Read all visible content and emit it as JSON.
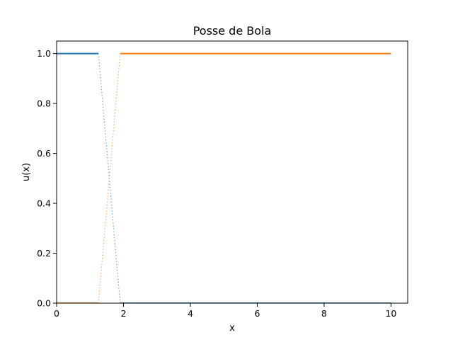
{
  "chart_data": {
    "type": "line",
    "title": "Posse de Bola",
    "xlabel": "x",
    "ylabel": "u(x)",
    "xlim": [
      0,
      10.5
    ],
    "ylim": [
      0,
      1.05
    ],
    "xticks": [
      0,
      2,
      4,
      6,
      8,
      10
    ],
    "xtick_labels": [
      "0",
      "2",
      "4",
      "6",
      "8",
      "10"
    ],
    "yticks": [
      0.0,
      0.2,
      0.4,
      0.6,
      0.8,
      1.0
    ],
    "ytick_labels": [
      "0.0",
      "0.2",
      "0.4",
      "0.6",
      "0.8",
      "1.0"
    ],
    "grid": false,
    "legend": "none",
    "series": [
      {
        "color": "#1f77b4",
        "segments": [
          {
            "style": "solid",
            "x": [
              0,
              1.25
            ],
            "y": [
              1.0,
              1.0
            ]
          },
          {
            "style": "dotted",
            "x": [
              1.25,
              1.9
            ],
            "y": [
              1.0,
              0.0
            ]
          },
          {
            "style": "solid",
            "x": [
              1.9,
              10
            ],
            "y": [
              0.0,
              0.0
            ]
          }
        ]
      },
      {
        "color": "#ff7f0e",
        "segments": [
          {
            "style": "solid",
            "x": [
              0,
              1.25
            ],
            "y": [
              0.0,
              0.0
            ]
          },
          {
            "style": "dotted",
            "x": [
              1.25,
              1.9
            ],
            "y": [
              0.0,
              1.0
            ]
          },
          {
            "style": "solid",
            "x": [
              1.9,
              10
            ],
            "y": [
              1.0,
              1.0
            ]
          }
        ]
      }
    ]
  }
}
